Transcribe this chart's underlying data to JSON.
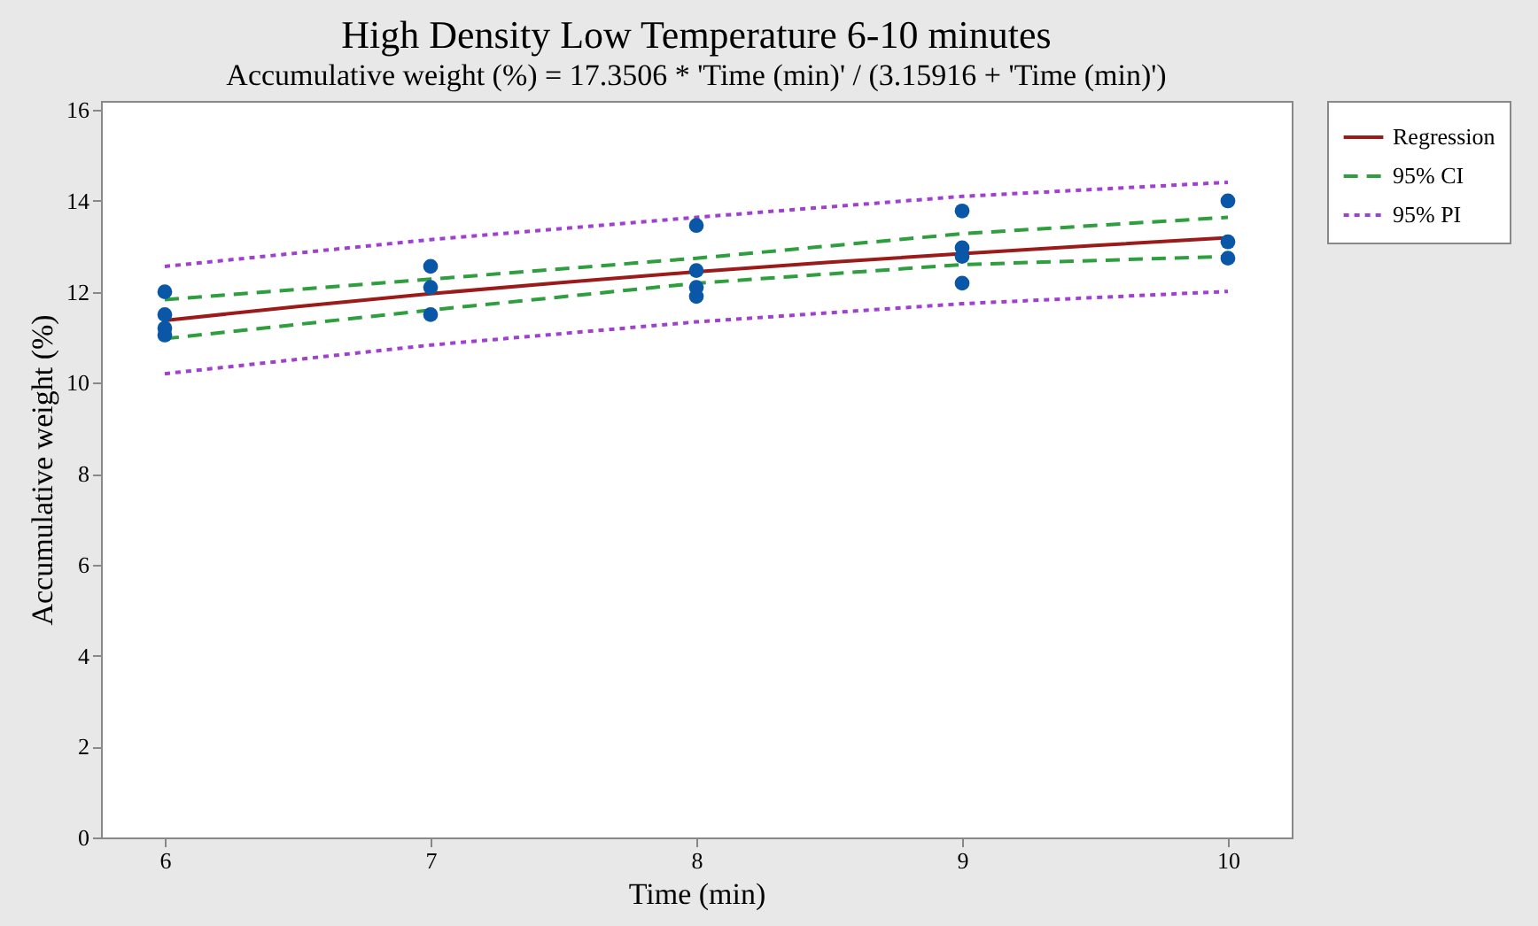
{
  "chart_data": {
    "type": "line",
    "title": "High Density Low Temperature 6-10  minutes",
    "subtitle": "Accumulative weight (%) = 17.3506 * 'Time (min)' / (3.15916 + 'Time (min)')",
    "xlabel": "Time (min)",
    "ylabel": "Accumulative weight (%)",
    "xlim": [
      5.76,
      10.24
    ],
    "xticks": [
      6,
      7,
      8,
      9,
      10
    ],
    "ylim": [
      0,
      16.2
    ],
    "yticks": [
      0,
      2,
      4,
      6,
      8,
      10,
      12,
      14,
      16
    ],
    "grid": false,
    "legend": "top right",
    "series": [
      {
        "name": "Regression",
        "line_style": "solid",
        "marker": "none",
        "color": "#9b1b1b",
        "x": [
          6,
          6.5,
          7,
          7.5,
          8,
          8.5,
          9,
          9.5,
          10
        ],
        "values": [
          11.37,
          11.68,
          11.96,
          12.21,
          12.44,
          12.65,
          12.84,
          13.02,
          13.19
        ]
      },
      {
        "name": "95% CI",
        "line_style": "dashed",
        "marker": "none",
        "color": "#2e9e3e",
        "x": [
          6,
          7,
          8,
          9,
          10
        ],
        "values": [
          11.83,
          12.28,
          12.74,
          13.28,
          13.64
        ]
      },
      {
        "line_style": "dashed",
        "marker": "none",
        "color": "#2e9e3e",
        "x": [
          6,
          7,
          8,
          9,
          10
        ],
        "values": [
          10.97,
          11.6,
          12.19,
          12.6,
          12.78
        ]
      },
      {
        "name": "95% PI",
        "line_style": "dotted",
        "marker": "none",
        "color": "#a040d0",
        "x": [
          6,
          7,
          8,
          9,
          10
        ],
        "values": [
          12.56,
          13.15,
          13.64,
          14.1,
          14.41
        ]
      },
      {
        "line_style": "dotted",
        "marker": "none",
        "color": "#a040d0",
        "x": [
          6,
          7,
          8,
          9,
          10
        ],
        "values": [
          10.2,
          10.83,
          11.34,
          11.74,
          12.01
        ]
      },
      {
        "type": "scatter",
        "marker": "circle",
        "color": "#0a57a8",
        "x": [
          6,
          6,
          6,
          6,
          7,
          7,
          7,
          8,
          8,
          8,
          8,
          9,
          9,
          9,
          9,
          10,
          10,
          10
        ],
        "values": [
          12.0,
          11.5,
          11.2,
          11.05,
          12.56,
          12.1,
          11.5,
          13.46,
          12.47,
          12.1,
          11.9,
          13.78,
          12.97,
          12.78,
          12.19,
          14.0,
          13.1,
          12.74
        ]
      }
    ]
  }
}
